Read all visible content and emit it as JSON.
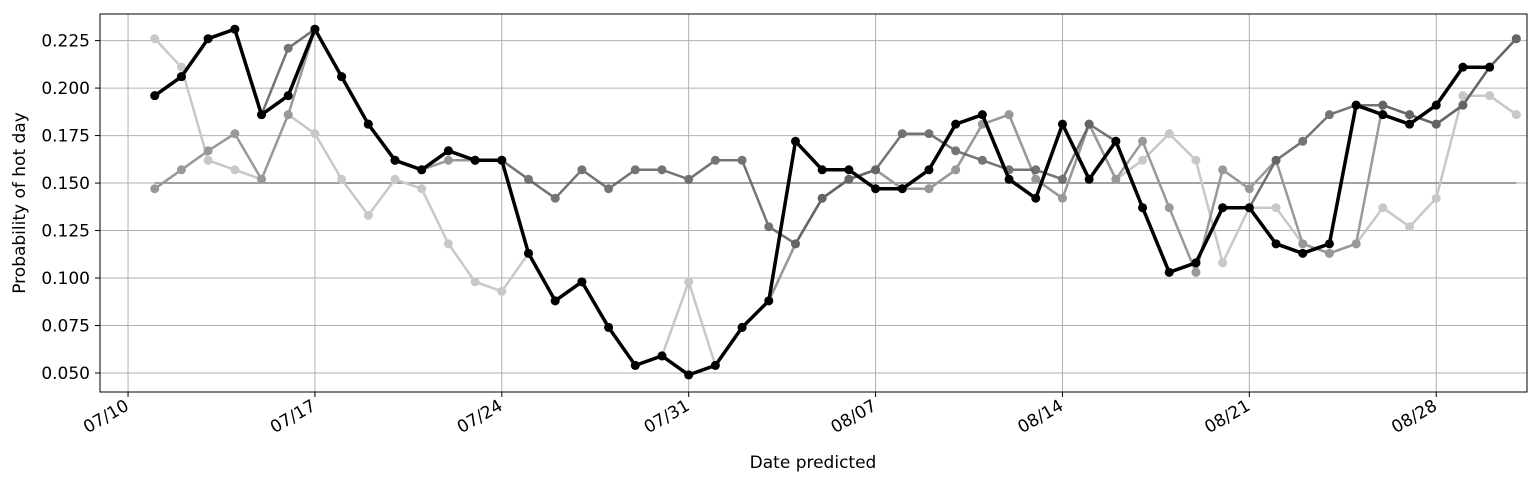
{
  "chart_data": {
    "type": "line",
    "title": "",
    "xlabel": "Date predicted",
    "ylabel": "Probability of hot day",
    "x_start": "07/11",
    "x_tick_labels": [
      "07/10",
      "07/17",
      "07/24",
      "07/31",
      "08/07",
      "08/14",
      "08/21",
      "08/28"
    ],
    "x_tick_days": [
      -1,
      6,
      13,
      20,
      27,
      34,
      41,
      48
    ],
    "xlim_days": [
      -2.05,
      51.4
    ],
    "ylim": [
      0.04,
      0.239
    ],
    "y_ticks": [
      0.05,
      0.075,
      0.1,
      0.125,
      0.15,
      0.175,
      0.2,
      0.225
    ],
    "y_tick_labels": [
      "0.050",
      "0.075",
      "0.100",
      "0.125",
      "0.150",
      "0.175",
      "0.200",
      "0.225"
    ],
    "grid": true,
    "baseline": {
      "value": 0.15,
      "color": "#808080"
    },
    "series": [
      {
        "name": "series-light",
        "color": "#c8c8c8",
        "values": [
          0.226,
          0.211,
          0.162,
          0.157,
          0.152,
          0.186,
          0.176,
          0.152,
          0.133,
          0.152,
          0.147,
          0.118,
          0.098,
          0.093,
          0.113,
          0.088,
          0.098,
          0.074,
          0.054,
          0.059,
          0.098,
          0.054,
          0.074,
          0.088,
          0.118,
          0.142,
          0.152,
          0.157,
          0.147,
          0.147,
          0.157,
          0.181,
          0.186,
          0.152,
          0.142,
          0.181,
          0.152,
          0.162,
          0.176,
          0.162,
          0.108,
          0.137,
          0.137,
          0.118,
          0.113,
          0.118,
          0.137,
          0.127,
          0.142,
          0.196,
          0.196,
          0.186
        ]
      },
      {
        "name": "series-medium",
        "color": "#999999",
        "values": [
          0.147,
          0.157,
          0.167,
          0.176,
          0.152,
          0.186,
          0.231,
          0.206,
          0.181,
          0.162,
          0.157,
          0.162,
          0.162,
          0.162,
          0.113,
          0.088,
          0.098,
          0.074,
          0.054,
          0.059,
          0.049,
          0.054,
          0.074,
          0.088,
          0.118,
          0.142,
          0.152,
          0.157,
          0.147,
          0.147,
          0.157,
          0.181,
          0.186,
          0.152,
          0.142,
          0.181,
          0.152,
          0.172,
          0.137,
          0.103,
          0.157,
          0.147,
          0.162,
          0.118,
          0.113,
          0.118,
          0.191,
          0.186,
          0.181,
          0.191,
          0.211,
          0.226
        ]
      },
      {
        "name": "series-dark",
        "color": "#5c5c5c",
        "values": [
          0.196,
          0.206,
          0.226,
          0.231,
          0.186,
          0.221,
          0.231,
          0.206,
          0.181,
          0.162,
          0.157,
          0.167,
          0.162,
          0.162,
          0.152,
          0.142,
          0.157,
          0.147,
          0.157,
          0.157,
          0.152,
          0.162,
          0.162,
          0.127,
          0.118,
          0.142,
          0.152,
          0.157,
          0.176,
          0.176,
          0.167,
          0.162,
          0.157,
          0.157,
          0.152,
          0.181,
          0.172,
          0.137,
          0.103,
          0.108,
          0.137,
          0.137,
          0.162,
          0.172,
          0.186,
          0.191,
          0.191,
          0.186,
          0.181,
          0.191,
          0.211,
          0.226
        ]
      },
      {
        "name": "series-black",
        "color": "#000000",
        "values": [
          0.196,
          0.206,
          0.226,
          0.231,
          0.186,
          0.196,
          0.231,
          0.206,
          0.181,
          0.162,
          0.157,
          0.167,
          0.162,
          0.162,
          0.113,
          0.088,
          0.098,
          0.074,
          0.054,
          0.059,
          0.049,
          0.054,
          0.074,
          0.088,
          0.172,
          0.157,
          0.157,
          0.147,
          0.147,
          0.157,
          0.181,
          0.186,
          0.152,
          0.142,
          0.181,
          0.152,
          0.172,
          0.137,
          0.103,
          0.108,
          0.137,
          0.137,
          0.118,
          0.113,
          0.118,
          0.191,
          0.186,
          0.181,
          0.191,
          0.211,
          0.211
        ]
      }
    ]
  }
}
